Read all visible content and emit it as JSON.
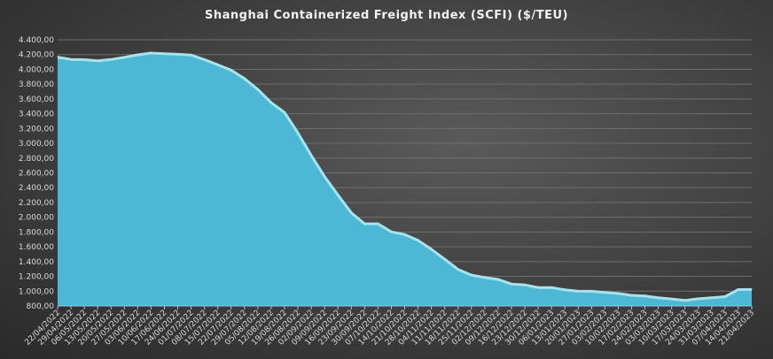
{
  "chart_data": {
    "type": "area",
    "title": "Shanghai Containerized Freight Index  (SCFI)  ($/TEU)",
    "xlabel": "",
    "ylabel": "",
    "ylim": [
      800,
      4400
    ],
    "yticks": [
      "800,00",
      "1.000,00",
      "1.200,00",
      "1.400,00",
      "1.600,00",
      "1.800,00",
      "2.000,00",
      "2.200,00",
      "2.400,00",
      "2.600,00",
      "2.800,00",
      "3.000,00",
      "3.200,00",
      "3.400,00",
      "3.600,00",
      "3.800,00",
      "4.000,00",
      "4.200,00",
      "4.400,00"
    ],
    "grid": true,
    "categories": [
      "22/04/2022",
      "29/04/2022",
      "06/05/2022",
      "13/05/2022",
      "20/05/2022",
      "27/05/2022",
      "03/06/2022",
      "10/06/2022",
      "17/06/2022",
      "24/06/2022",
      "01/07/2022",
      "08/07/2022",
      "15/07/2022",
      "22/07/2022",
      "29/07/2022",
      "05/08/2022",
      "12/08/2022",
      "19/08/2022",
      "26/08/2022",
      "02/09/2022",
      "09/09/2022",
      "16/09/2022",
      "23/09/2022",
      "30/09/2022",
      "07/10/2022",
      "14/10/2022",
      "21/10/2022",
      "28/10/2022",
      "04/11/2022",
      "11/11/2022",
      "18/11/2022",
      "25/11/2022",
      "02/12/2022",
      "09/12/2022",
      "16/12/2022",
      "23/12/2022",
      "30/12/2022",
      "06/01/2023",
      "13/01/2023",
      "20/01/2023",
      "27/01/2023",
      "03/02/2023",
      "10/02/2023",
      "17/02/2023",
      "24/02/2023",
      "03/03/2023",
      "10/03/2023",
      "17/03/2023",
      "24/03/2023",
      "31/03/2023",
      "07/04/2023",
      "14/04/2023",
      "21/04/2023"
    ],
    "values": [
      4177,
      4147,
      4143,
      4128,
      4145,
      4175,
      4209,
      4233,
      4224,
      4216,
      4205,
      4144,
      4074,
      4000,
      3887,
      3740,
      3562,
      3429,
      3154,
      2848,
      2562,
      2313,
      2072,
      1923,
      1923,
      1814,
      1778,
      1698,
      1579,
      1443,
      1306,
      1229,
      1197,
      1171,
      1108,
      1097,
      1061,
      1061,
      1030,
      1010,
      1010,
      995,
      981,
      955,
      946,
      923,
      906,
      886,
      909,
      923,
      937,
      1033,
      1034
    ],
    "colors": {
      "fill": "#4db8d6",
      "edge": "#9be8f5"
    }
  }
}
